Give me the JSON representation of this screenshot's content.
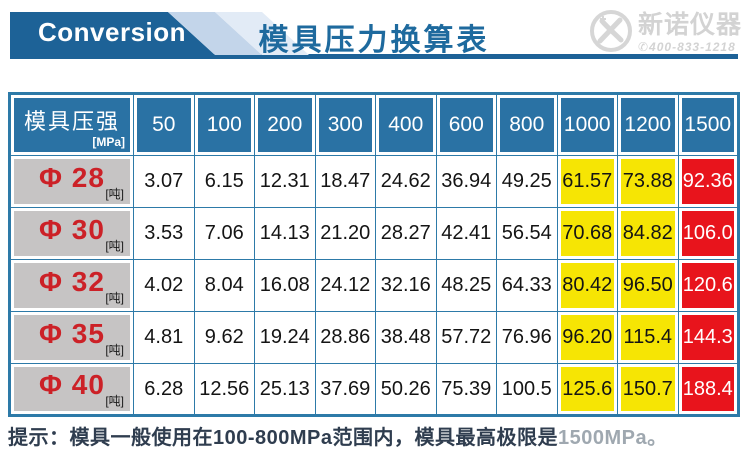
{
  "banner": {
    "label": "Conversion"
  },
  "header": {
    "title": "模具压力换算表"
  },
  "logo": {
    "company": "新诺仪器",
    "phone_icon": "✆",
    "phone": "400-833-1218"
  },
  "table": {
    "corner": {
      "title": "模具压强",
      "unit": "[MPa]"
    },
    "columns": [
      "50",
      "100",
      "200",
      "300",
      "400",
      "600",
      "800",
      "1000",
      "1200",
      "1500"
    ],
    "row_unit": "[吨]",
    "highlight": {
      "yellow_columns": [
        "1000",
        "1200"
      ],
      "red_columns": [
        "1500"
      ],
      "yellow_color": "#f6e504",
      "red_color": "#e8141c"
    },
    "rows": [
      {
        "label": "Φ 28",
        "values": [
          "3.07",
          "6.15",
          "12.31",
          "18.47",
          "24.62",
          "36.94",
          "49.25",
          "61.57",
          "73.88",
          "92.36"
        ]
      },
      {
        "label": "Φ 30",
        "values": [
          "3.53",
          "7.06",
          "14.13",
          "21.20",
          "28.27",
          "42.41",
          "56.54",
          "70.68",
          "84.82",
          "106.0"
        ]
      },
      {
        "label": "Φ 32",
        "values": [
          "4.02",
          "8.04",
          "16.08",
          "24.12",
          "32.16",
          "48.25",
          "64.33",
          "80.42",
          "96.50",
          "120.6"
        ]
      },
      {
        "label": "Φ 35",
        "values": [
          "4.81",
          "9.62",
          "19.24",
          "28.86",
          "38.48",
          "57.72",
          "76.96",
          "96.20",
          "115.4",
          "144.3"
        ]
      },
      {
        "label": "Φ 40",
        "values": [
          "6.28",
          "12.56",
          "25.13",
          "37.69",
          "50.26",
          "75.39",
          "100.5",
          "125.6",
          "150.7",
          "188.4"
        ]
      }
    ]
  },
  "note": {
    "main": "提示：模具一般使用在100-800MPa范围内，模具最高极限是",
    "faded": "1500MPa。"
  },
  "colors": {
    "banner_blue": "#1d6297",
    "title_blue": "#1e6a9e",
    "header_cell_blue": "#2a72a4",
    "grid_blue": "#2d7aa8",
    "label_gray": "#c6c4c4",
    "label_red_text": "#cc2127",
    "highlight_yellow": "#f6e504",
    "highlight_red": "#e8141c",
    "note_dark": "#2f3d4f",
    "note_faded": "#9fa8b0"
  },
  "chart_data": {
    "type": "table",
    "title": "模具压力换算表",
    "column_header": "模具压强 [MPa]",
    "columns": [
      50,
      100,
      200,
      300,
      400,
      600,
      800,
      1000,
      1200,
      1500
    ],
    "row_unit": "吨",
    "rows": [
      {
        "label": "Φ28",
        "values": [
          3.07,
          6.15,
          12.31,
          18.47,
          24.62,
          36.94,
          49.25,
          61.57,
          73.88,
          92.36
        ]
      },
      {
        "label": "Φ30",
        "values": [
          3.53,
          7.06,
          14.13,
          21.2,
          28.27,
          42.41,
          56.54,
          70.68,
          84.82,
          106.0
        ]
      },
      {
        "label": "Φ32",
        "values": [
          4.02,
          8.04,
          16.08,
          24.12,
          32.16,
          48.25,
          64.33,
          80.42,
          96.5,
          120.6
        ]
      },
      {
        "label": "Φ35",
        "values": [
          4.81,
          9.62,
          19.24,
          28.86,
          38.48,
          57.72,
          76.96,
          96.2,
          115.4,
          144.3
        ]
      },
      {
        "label": "Φ40",
        "values": [
          6.28,
          12.56,
          25.13,
          37.69,
          50.26,
          75.39,
          100.5,
          125.6,
          150.7,
          188.4
        ]
      }
    ],
    "annotation": "提示：模具一般使用在100-800MPa范围内，模具最高极限是1500MPa。",
    "legend": {
      "yellow": "1000-1200 MPa columns highlighted",
      "red": "1500 MPa column highlighted"
    }
  }
}
